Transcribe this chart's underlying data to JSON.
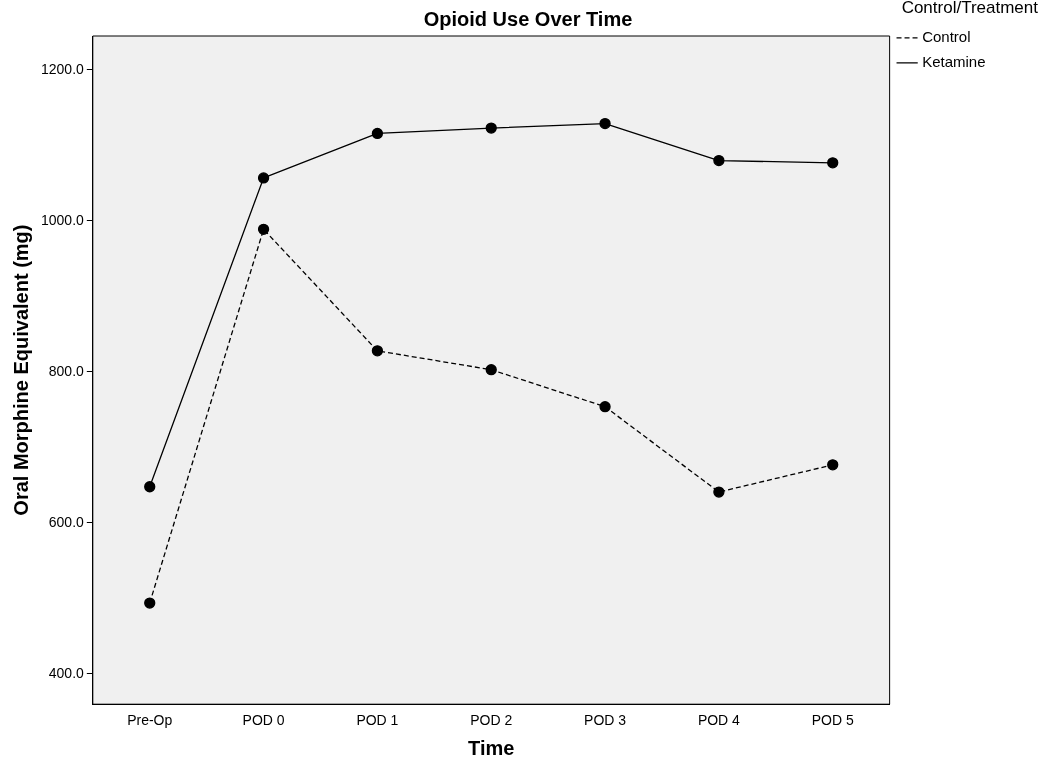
{
  "chart_data": {
    "type": "line",
    "title": "Opioid Use Over Time",
    "xlabel": "Time",
    "ylabel": "Oral Morphine Equivalent (mg)",
    "legend_title": "Control/Treatment",
    "categories": [
      "Pre-Op",
      "POD 0",
      "POD 1",
      "POD 2",
      "POD 3",
      "POD 4",
      "POD 5"
    ],
    "series": [
      {
        "name": "Control",
        "color": "#000000",
        "line_style": "dashed",
        "values": [
          494,
          989,
          828,
          803,
          754,
          641,
          677
        ]
      },
      {
        "name": "Ketamine",
        "color": "#000000",
        "line_style": "solid",
        "values": [
          648,
          1057,
          1116,
          1123,
          1129,
          1080,
          1077
        ]
      }
    ],
    "ylim": [
      360,
      1245
    ],
    "yticks": [
      {
        "value": 400,
        "label": "400.0"
      },
      {
        "value": 600,
        "label": "600.0"
      },
      {
        "value": 800,
        "label": "800.0"
      },
      {
        "value": 1000,
        "label": "1000.0"
      },
      {
        "value": 1200,
        "label": "1200.0"
      }
    ],
    "grid": false,
    "legend": "top right",
    "marker": "circle"
  }
}
